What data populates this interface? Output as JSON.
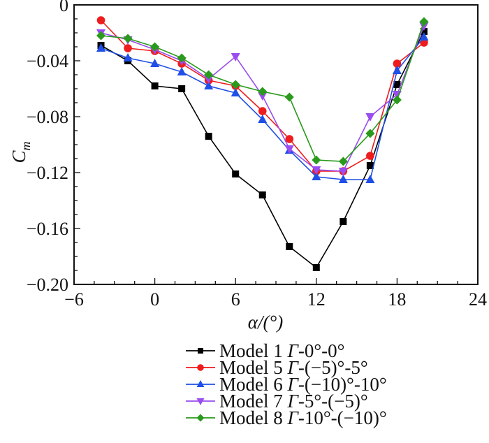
{
  "chart_data": {
    "type": "line",
    "title": "",
    "xlabel": "α/(°)",
    "ylabel": "C_m",
    "ylabel_main": "C",
    "ylabel_sub": "m",
    "xlim": [
      -6,
      24
    ],
    "ylim": [
      -0.2,
      0
    ],
    "xticks": [
      -6,
      0,
      6,
      12,
      18,
      24
    ],
    "xtick_labels": [
      "−6",
      "0",
      "6",
      "12",
      "18",
      "24"
    ],
    "xminor_step": 1.5,
    "yticks": [
      0,
      -0.04,
      -0.08,
      -0.12,
      -0.16,
      -0.2
    ],
    "ytick_labels": [
      "0",
      "−0.04",
      "−0.08",
      "−0.12",
      "−0.16",
      "−0.20"
    ],
    "yminor_step": 0.01,
    "grid": false,
    "legend_position": "bottom-center (below plot)",
    "x": [
      -4,
      -2,
      0,
      2,
      4,
      6,
      8,
      10,
      12,
      14,
      16,
      18,
      20
    ],
    "series": [
      {
        "name": "Model 1 Γ-0°-0°",
        "label_main": "Model 1 ",
        "label_gamma": "Γ",
        "label_rest": "-0°-0°",
        "color": "#000000",
        "marker": "square",
        "values": [
          -0.029,
          -0.04,
          -0.058,
          -0.06,
          -0.094,
          -0.121,
          -0.136,
          -0.173,
          -0.188,
          -0.155,
          -0.115,
          -0.057,
          -0.019
        ]
      },
      {
        "name": "Model 5 Γ-(−5)°-5°",
        "label_main": "Model 5 ",
        "label_gamma": "Γ",
        "label_rest": "-(−5)°-5°",
        "color": "#ee1c1c",
        "marker": "circle",
        "values": [
          -0.011,
          -0.031,
          -0.033,
          -0.042,
          -0.054,
          -0.058,
          -0.076,
          -0.096,
          -0.119,
          -0.119,
          -0.108,
          -0.042,
          -0.027
        ]
      },
      {
        "name": "Model 6 Γ-(−10)°-10°",
        "label_main": "Model 6 ",
        "label_gamma": "Γ",
        "label_rest": "-(−10)°-10°",
        "color": "#1f4fe6",
        "marker": "triangle-up",
        "values": [
          -0.031,
          -0.038,
          -0.042,
          -0.048,
          -0.058,
          -0.063,
          -0.082,
          -0.104,
          -0.123,
          -0.125,
          -0.125,
          -0.047,
          -0.023
        ]
      },
      {
        "name": "Model 7 Γ-5°-(−5)°",
        "label_main": "Model 7 ",
        "label_gamma": "Γ",
        "label_rest": "-5°-(−5)°",
        "color": "#9a4cf0",
        "marker": "triangle-down",
        "values": [
          -0.02,
          -0.025,
          -0.032,
          -0.04,
          -0.053,
          -0.037,
          -0.065,
          -0.103,
          -0.118,
          -0.119,
          -0.08,
          -0.064,
          -0.015
        ]
      },
      {
        "name": "Model 8 Γ-10°-(−10)°",
        "label_main": "Model 8 ",
        "label_gamma": "Γ",
        "label_rest": "-10°-(−10)°",
        "color": "#2a9a1c",
        "marker": "diamond",
        "values": [
          -0.022,
          -0.024,
          -0.03,
          -0.038,
          -0.05,
          -0.057,
          -0.062,
          -0.066,
          -0.111,
          -0.112,
          -0.092,
          -0.068,
          -0.012
        ]
      }
    ]
  }
}
